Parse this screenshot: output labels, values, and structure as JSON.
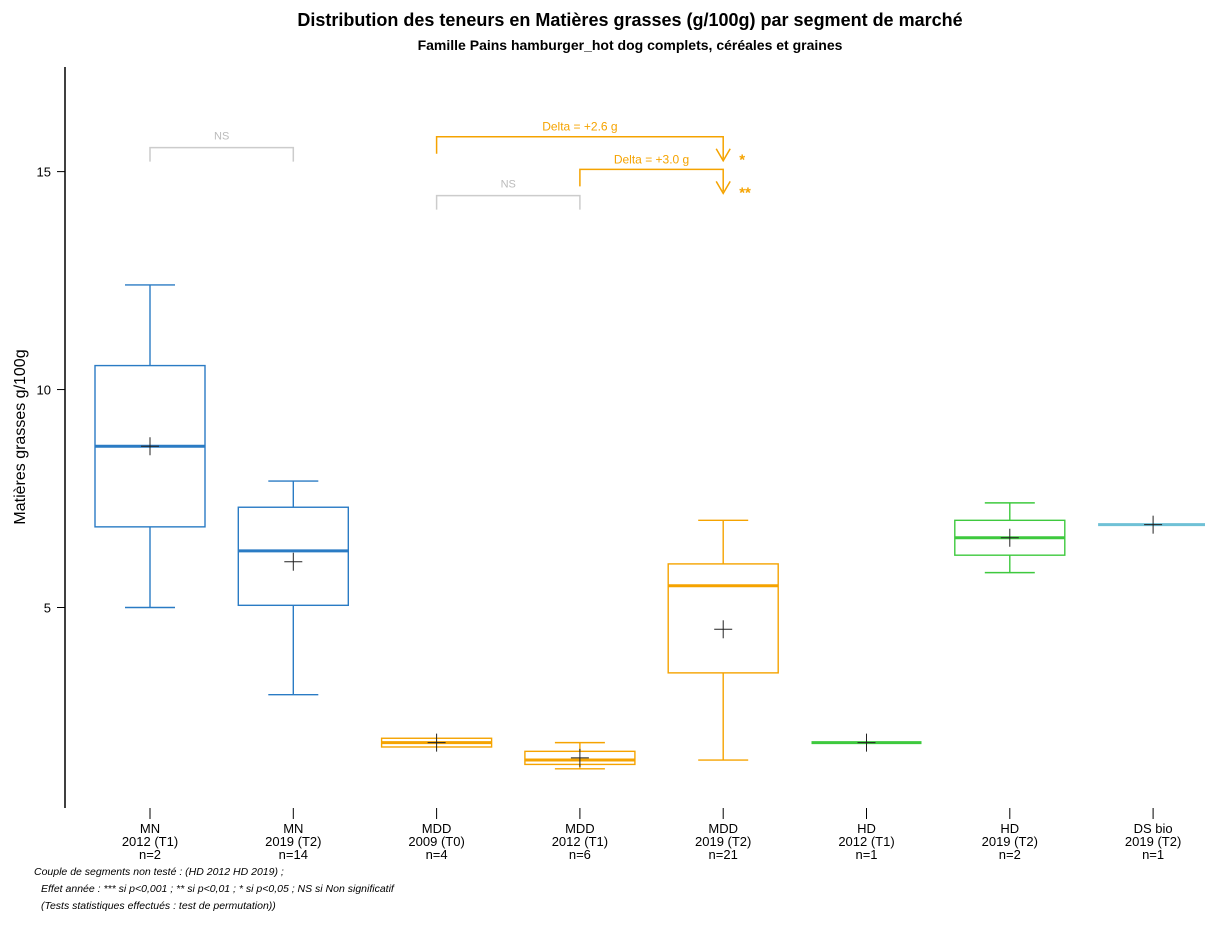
{
  "chart_data": {
    "type": "box",
    "title": "Distribution des teneurs en Matières grasses (g/100g) par segment de marché",
    "subtitle": "Famille Pains hamburger_hot dog complets, céréales et graines",
    "ylabel": "Matières grasses g/100g",
    "ylim": [
      0.4,
      17.4
    ],
    "yticks": [
      5,
      10,
      15
    ],
    "categories": [
      {
        "segment": "MN",
        "period": "2012 (T1)",
        "n": "n=2",
        "color": "#2a7bc4",
        "min": 5.0,
        "q1": 6.85,
        "median": 8.7,
        "q3": 10.55,
        "max": 12.4,
        "mean": 8.7
      },
      {
        "segment": "MN",
        "period": "2019 (T2)",
        "n": "n=14",
        "color": "#2a7bc4",
        "min": 3.0,
        "q1": 5.05,
        "median": 6.3,
        "q3": 7.3,
        "max": 7.9,
        "mean": 6.05
      },
      {
        "segment": "MDD",
        "period": "2009 (T0)",
        "n": "n=4",
        "color": "#f5a300",
        "min": 1.8,
        "q1": 1.8,
        "median": 1.9,
        "q3": 2.0,
        "max": 2.0,
        "mean": 1.9
      },
      {
        "segment": "MDD",
        "period": "2012 (T1)",
        "n": "n=6",
        "color": "#f5a300",
        "min": 1.3,
        "q1": 1.4,
        "median": 1.5,
        "q3": 1.7,
        "max": 1.9,
        "mean": 1.55
      },
      {
        "segment": "MDD",
        "period": "2019 (T2)",
        "n": "n=21",
        "color": "#f5a300",
        "min": 1.5,
        "q1": 3.5,
        "median": 5.5,
        "q3": 6.0,
        "max": 7.0,
        "mean": 4.5
      },
      {
        "segment": "HD",
        "period": "2012 (T1)",
        "n": "n=1",
        "color": "#3ec93e",
        "min": 1.9,
        "q1": 1.9,
        "median": 1.9,
        "q3": 1.9,
        "max": 1.9,
        "mean": 1.9
      },
      {
        "segment": "HD",
        "period": "2019 (T2)",
        "n": "n=2",
        "color": "#3ec93e",
        "min": 5.8,
        "q1": 6.2,
        "median": 6.6,
        "q3": 7.0,
        "max": 7.4,
        "mean": 6.6
      },
      {
        "segment": "DS bio",
        "period": "2019 (T2)",
        "n": "n=1",
        "color": "#6fc1d6",
        "min": 6.9,
        "q1": 6.9,
        "median": 6.9,
        "q3": 6.9,
        "max": 6.9,
        "mean": 6.9
      }
    ],
    "comparisons": [
      {
        "from": 0,
        "to": 1,
        "label": "NS",
        "level": 15.55,
        "significance": "",
        "color": "#cccccc",
        "arrow": false
      },
      {
        "from": 2,
        "to": 3,
        "label": "NS",
        "level": 14.45,
        "significance": "",
        "color": "#cccccc",
        "arrow": false
      },
      {
        "from": 2,
        "to": 4,
        "label": "Delta = +2.6 g",
        "level": 15.8,
        "significance": "*",
        "color": "#f5a300",
        "arrow": true
      },
      {
        "from": 3,
        "to": 4,
        "label": "Delta = +3.0 g",
        "level": 15.05,
        "significance": "**",
        "color": "#f5a300",
        "arrow": true
      }
    ]
  },
  "footnotes": [
    "Couple de segments non testé : (HD 2012 HD 2019) ;",
    "Effet année : *** si p<0,001 ; ** si p<0,01 ; * si p<0,05 ; NS si Non significatif",
    "(Tests statistiques effectués : test de permutation))"
  ]
}
